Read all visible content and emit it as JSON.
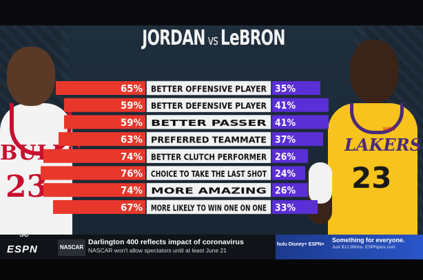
{
  "chart_data": {
    "type": "bar",
    "title": "JORDAN vs LeBRON",
    "title_parts": {
      "left": "JORDAN",
      "vs": "vs",
      "right": "LeBRON"
    },
    "categories": [
      "BETTER OFFENSIVE PLAYER",
      "BETTER DEFENSIVE PLAYER",
      "BETTER PASSER",
      "PREFERRED TEAMMATE",
      "BETTER CLUTCH PERFORMER",
      "CHOICE TO TAKE THE LAST SHOT",
      "MORE AMAZING",
      "MORE LIKELY TO WIN ONE ON ONE"
    ],
    "series": [
      {
        "name": "JORDAN",
        "color": "#e8382b",
        "values": [
          65,
          59,
          59,
          63,
          74,
          76,
          74,
          67
        ]
      },
      {
        "name": "LeBRON",
        "color": "#5b2fd6",
        "values": [
          35,
          41,
          41,
          37,
          26,
          24,
          26,
          33
        ]
      }
    ],
    "value_suffix": "%",
    "xlim": [
      0,
      100
    ]
  },
  "jordan_jersey": {
    "text": "BULLS",
    "number": "23"
  },
  "lebron_jersey": {
    "text": "LAKERS",
    "number": "23",
    "brand": "wish"
  },
  "network": {
    "corner_logo": "SC",
    "logo": "ESPN"
  },
  "ticker": {
    "category": "NASCAR",
    "headline": "Darlington 400 reflects impact of coronavirus",
    "subline": "NASCAR won't allow spectators until at least June 21"
  },
  "promo": {
    "logos": "hulu  Disney+  ESPN+",
    "title": "Something for everyone.",
    "subtitle": "Just $12.99/mo. ESPNplus.com"
  },
  "colors": {
    "jordan_bar": "#e8382b",
    "lebron_bar": "#5b2fd6",
    "label_bg": "#f2f2f2",
    "label_text": "#111111"
  }
}
